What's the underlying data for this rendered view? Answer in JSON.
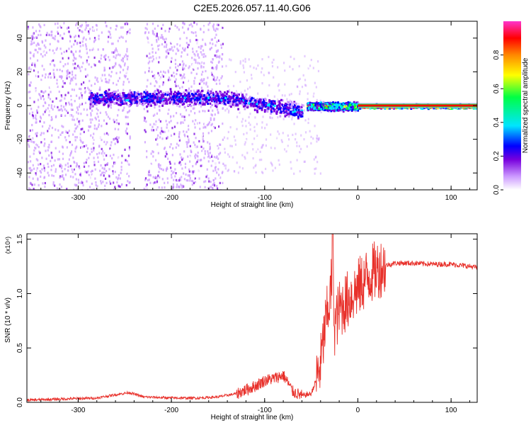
{
  "title": "C2E5.2026.057.11.40.G06",
  "chart_data": [
    {
      "type": "heatmap",
      "xlabel": "Height of straight line (km)",
      "ylabel": "Frequency (Hz)",
      "xlim": [
        -355,
        128
      ],
      "ylim": [
        -50,
        50
      ],
      "xticks": [
        -300,
        -200,
        -100,
        0,
        100
      ],
      "yticks": [
        -40,
        -20,
        0,
        20,
        40
      ],
      "colorbar": {
        "label": "Normalized spectral amplitude",
        "range": [
          0,
          1
        ],
        "ticks": [
          0.0,
          0.2,
          0.4,
          0.6,
          0.8
        ],
        "colormap": [
          "#ffffff",
          "#cc99ff",
          "#7700dd",
          "#0000ff",
          "#00e5ff",
          "#00ff44",
          "#ffff00",
          "#ff8800",
          "#ff0000",
          "#ff33cc"
        ]
      },
      "features": [
        {
          "x_range": [
            -355,
            -145
          ],
          "description": "scattered diffuse signal across all frequencies, excluding gap near -245 to -230 km"
        },
        {
          "x_range": [
            -290,
            -60
          ],
          "center_freq_hz": 5,
          "spread_hz": 6,
          "amplitude": 0.35
        },
        {
          "x_range": [
            -55,
            0
          ],
          "center_freq_hz": 0,
          "spread_hz": 3,
          "amplitude": 0.6
        },
        {
          "x_range": [
            0,
            128
          ],
          "center_freq_hz": 0,
          "spread_hz": 1.5,
          "amplitude": 0.95
        }
      ]
    },
    {
      "type": "line",
      "xlabel": "Height of straight line (km)",
      "ylabel": "SNR (10 * v/v)",
      "scale_label": "(x10⁴)",
      "xlim": [
        -355,
        128
      ],
      "ylim": [
        0,
        1.55
      ],
      "xticks": [
        -300,
        -200,
        -100,
        0,
        100
      ],
      "yticks": [
        0.0,
        0.5,
        1.0,
        1.5
      ],
      "color": "#e8302a",
      "series": [
        {
          "x": [
            -355,
            -320,
            -280,
            -260,
            -245,
            -230,
            -200,
            -170,
            -150,
            -130,
            -110,
            -100,
            -90,
            -80,
            -75,
            -70,
            -60,
            -50,
            -45,
            -40,
            -35,
            -30,
            -27,
            -25,
            -20,
            -15,
            -10,
            -5,
            0,
            5,
            10,
            20,
            30,
            40,
            60,
            80,
            100,
            110,
            120,
            128
          ],
          "values": [
            0.02,
            0.03,
            0.04,
            0.07,
            0.09,
            0.05,
            0.04,
            0.04,
            0.05,
            0.08,
            0.15,
            0.2,
            0.22,
            0.25,
            0.18,
            0.1,
            0.06,
            0.08,
            0.2,
            0.35,
            0.7,
            0.95,
            1.2,
            0.7,
            0.85,
            0.9,
            0.95,
            1.0,
            1.05,
            1.1,
            1.15,
            1.22,
            1.26,
            1.28,
            1.28,
            1.27,
            1.27,
            1.26,
            1.25,
            1.24
          ]
        }
      ]
    }
  ]
}
